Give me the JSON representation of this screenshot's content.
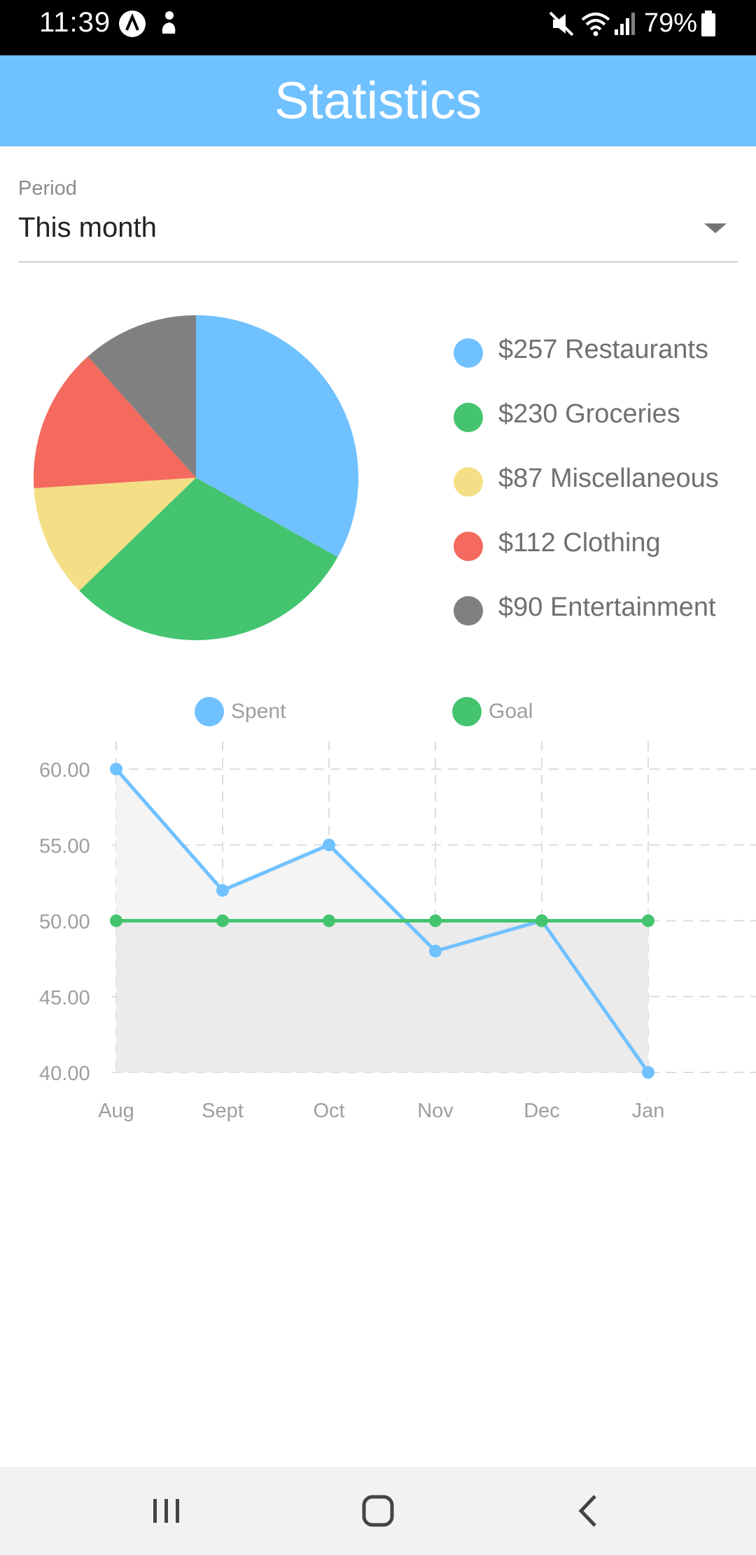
{
  "status_bar": {
    "time": "11:39",
    "battery": "79%",
    "icons": [
      "app-a-icon",
      "app-b-icon",
      "mute-icon",
      "wifi-icon",
      "signal-icon",
      "battery-icon"
    ]
  },
  "header": {
    "title": "Statistics"
  },
  "period": {
    "label": "Period",
    "value": "This month"
  },
  "colors": {
    "accent": "#70c1ff",
    "restaurants": "#70c1ff",
    "groceries": "#44c46f",
    "miscellaneous": "#f4df86",
    "clothing": "#f46a5e",
    "entertainment": "#808080",
    "goal": "#44c46f"
  },
  "legend": [
    {
      "label": "$257 Restaurants",
      "color": "#70c1ff"
    },
    {
      "label": "$230 Groceries",
      "color": "#44c46f"
    },
    {
      "label": "$87 Miscellaneous",
      "color": "#f4df86"
    },
    {
      "label": "$112 Clothing",
      "color": "#f46a5e"
    },
    {
      "label": "$90 Entertainment",
      "color": "#808080"
    }
  ],
  "line_legend": {
    "spent": "Spent",
    "goal": "Goal"
  },
  "chart_data": [
    {
      "type": "pie",
      "categories": [
        "Restaurants",
        "Groceries",
        "Miscellaneous",
        "Clothing",
        "Entertainment"
      ],
      "values": [
        257,
        230,
        87,
        112,
        90
      ],
      "colors": [
        "#70c1ff",
        "#44c46f",
        "#f4df86",
        "#f46a5e",
        "#808080"
      ]
    },
    {
      "type": "line",
      "categories": [
        "Aug",
        "Sept",
        "Oct",
        "Nov",
        "Dec",
        "Jan"
      ],
      "series": [
        {
          "name": "Spent",
          "values": [
            60,
            52,
            55,
            48,
            50,
            40
          ],
          "color": "#70c1ff"
        },
        {
          "name": "Goal",
          "values": [
            50,
            50,
            50,
            50,
            50,
            50
          ],
          "color": "#44c46f"
        }
      ],
      "yticks": [
        "60.00",
        "55.00",
        "50.00",
        "45.00",
        "40.00"
      ],
      "ylim": [
        40,
        60
      ],
      "grid": true
    }
  ],
  "nav": {
    "icons": [
      "recents-icon",
      "home-icon",
      "back-icon"
    ]
  }
}
